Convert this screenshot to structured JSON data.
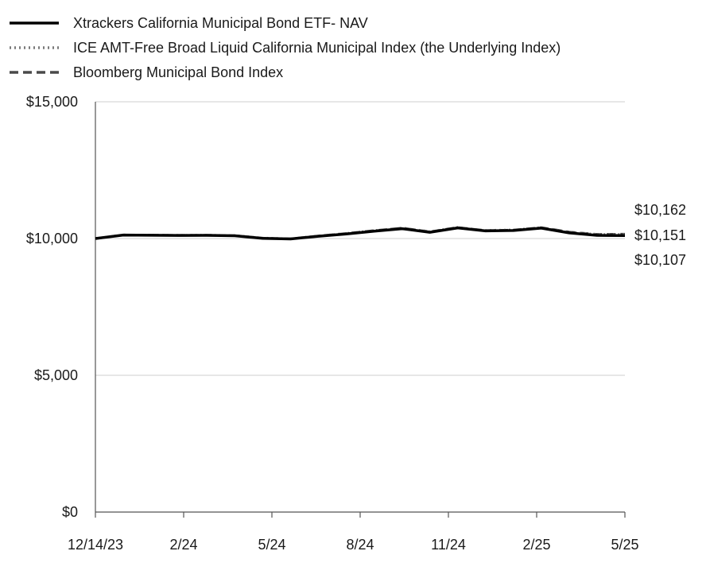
{
  "chart_data": {
    "type": "line",
    "title": "",
    "xlabel": "",
    "ylabel": "",
    "ylim": [
      0,
      15000
    ],
    "yticks": [
      0,
      5000,
      10000,
      15000
    ],
    "ytick_labels": [
      "$0",
      "$5,000",
      "$10,000",
      "$15,000"
    ],
    "xticks": [
      "12/14/23",
      "2/24",
      "5/24",
      "8/24",
      "11/24",
      "2/25",
      "5/25"
    ],
    "grid": "horizontal",
    "legend_position": "top-left",
    "colors": {
      "nav": "#000000",
      "underlying": "#7a7a7a",
      "bloomberg": "#4a4a4a",
      "grid": "#cfcfcf",
      "axis": "#555555"
    },
    "end_labels": [
      "$10,162",
      "$10,151",
      "$10,107"
    ],
    "series": [
      {
        "name": "Xtrackers California Municipal Bond ETF- NAV",
        "style": "solid",
        "values": [
          10000,
          10128,
          10120,
          10112,
          10115,
          10102,
          10010,
          9985,
          10085,
          10170,
          10270,
          10360,
          10230,
          10390,
          10280,
          10295,
          10380,
          10205,
          10115,
          10107
        ]
      },
      {
        "name": "ICE AMT-Free Broad Liquid California Municipal Index (the Underlying Index)",
        "style": "dotted",
        "values": [
          10000,
          10135,
          10128,
          10120,
          10125,
          10110,
          10020,
          9995,
          10100,
          10190,
          10295,
          10390,
          10255,
          10410,
          10300,
          10320,
          10405,
          10235,
          10150,
          10151
        ]
      },
      {
        "name": "Bloomberg Municipal Bond Index",
        "style": "dashed",
        "values": [
          10000,
          10132,
          10124,
          10118,
          10122,
          10106,
          10015,
          9990,
          10095,
          10185,
          10290,
          10385,
          10250,
          10405,
          10295,
          10312,
          10400,
          10240,
          10158,
          10162
        ]
      }
    ]
  }
}
